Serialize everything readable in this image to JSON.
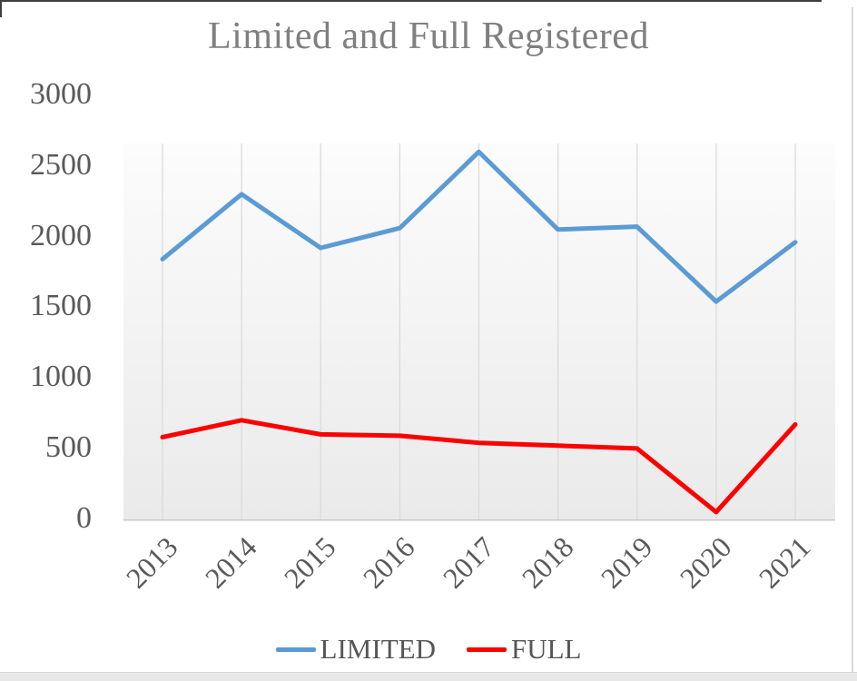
{
  "chart_data": {
    "type": "line",
    "title": "Limited and Full Registered",
    "categories": [
      "2013",
      "2014",
      "2015",
      "2016",
      "2017",
      "2018",
      "2019",
      "2020",
      "2021"
    ],
    "series": [
      {
        "name": "LIMITED",
        "color": "#5B9BD5",
        "values": [
          1840,
          2300,
          1920,
          2060,
          2600,
          2050,
          2070,
          1540,
          1960
        ]
      },
      {
        "name": "FULL",
        "color": "#FE0000",
        "values": [
          580,
          700,
          600,
          590,
          540,
          520,
          500,
          50,
          670
        ]
      }
    ],
    "yticks": [
      0,
      500,
      1000,
      1500,
      2000,
      2500,
      3000
    ],
    "ylim": [
      0,
      3000
    ],
    "xlabel": "",
    "ylabel": "",
    "grid": "vertical-only",
    "legend_position": "bottom",
    "colors": {
      "title_text": "#7f7f7f",
      "axis_text": "#5a5a5a",
      "gridline": "#dbdbdb",
      "plot_bg_top": "#fcfcfc",
      "plot_bg_bottom": "#eaeaea"
    }
  }
}
